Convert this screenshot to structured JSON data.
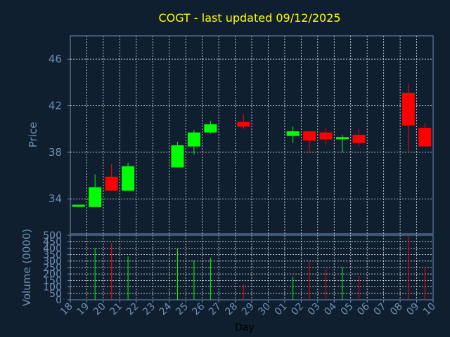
{
  "chart_data": [
    {
      "type": "candlestick",
      "title": "COGT - last updated 09/12/2025",
      "ylabel": "Price",
      "ylim": [
        31,
        48
      ],
      "yticks": [
        "34",
        "38",
        "42",
        "46"
      ],
      "grid": true,
      "colors": {
        "up": "#00ff00",
        "down": "#ff0000",
        "title": "#ffff00",
        "axis": "#6f8fb5",
        "background": "#0f1f2f"
      },
      "categories": [
        "18",
        "19",
        "20",
        "21",
        "22",
        "23",
        "24",
        "25",
        "26",
        "27",
        "28",
        "29",
        "30",
        "01",
        "02",
        "03",
        "04",
        "05",
        "06",
        "07",
        "08",
        "09",
        "10"
      ],
      "candles": [
        {
          "x": "18",
          "open": 33.5,
          "high": 33.5,
          "low": 33.5,
          "close": 33.5
        },
        {
          "x": "19",
          "open": 33.3,
          "high": 36.1,
          "low": 33.3,
          "close": 35.0
        },
        {
          "x": "20",
          "open": 35.9,
          "high": 37.0,
          "low": 34.7,
          "close": 34.7
        },
        {
          "x": "21",
          "open": 34.7,
          "high": 37.1,
          "low": 34.7,
          "close": 36.8
        },
        {
          "x": "24",
          "open": 36.7,
          "high": 38.9,
          "low": 36.7,
          "close": 38.6
        },
        {
          "x": "25",
          "open": 38.5,
          "high": 39.9,
          "low": 37.8,
          "close": 39.7
        },
        {
          "x": "26",
          "open": 39.7,
          "high": 40.7,
          "low": 39.6,
          "close": 40.4
        },
        {
          "x": "28",
          "open": 40.6,
          "high": 41.3,
          "low": 40.0,
          "close": 40.2
        },
        {
          "x": "01",
          "open": 39.4,
          "high": 40.2,
          "low": 38.8,
          "close": 39.8
        },
        {
          "x": "02",
          "open": 39.8,
          "high": 39.8,
          "low": 37.9,
          "close": 39.0
        },
        {
          "x": "03",
          "open": 39.7,
          "high": 40.1,
          "low": 38.6,
          "close": 39.1
        },
        {
          "x": "04",
          "open": 39.2,
          "high": 39.5,
          "low": 38.0,
          "close": 39.3
        },
        {
          "x": "05",
          "open": 39.5,
          "high": 40.0,
          "low": 38.5,
          "close": 38.8
        },
        {
          "x": "08",
          "open": 43.1,
          "high": 43.9,
          "low": 38.0,
          "close": 40.3
        },
        {
          "x": "09",
          "open": 40.1,
          "high": 40.5,
          "low": 38.5,
          "close": 38.5
        }
      ]
    },
    {
      "type": "bar",
      "xlabel": "Day",
      "ylabel": "Volume (0000)",
      "ylim": [
        0,
        500
      ],
      "yticks": [
        "0",
        "50",
        "100",
        "150",
        "200",
        "250",
        "300",
        "350",
        "400",
        "450",
        "500"
      ],
      "grid": true,
      "categories": [
        "18",
        "19",
        "20",
        "21",
        "22",
        "23",
        "24",
        "25",
        "26",
        "27",
        "28",
        "29",
        "30",
        "01",
        "02",
        "03",
        "04",
        "05",
        "06",
        "07",
        "08",
        "09",
        "10"
      ],
      "bars": [
        {
          "x": "18",
          "value": 0,
          "dir": "down"
        },
        {
          "x": "19",
          "value": 400,
          "dir": "up"
        },
        {
          "x": "20",
          "value": 440,
          "dir": "down"
        },
        {
          "x": "21",
          "value": 335,
          "dir": "up"
        },
        {
          "x": "24",
          "value": 395,
          "dir": "up"
        },
        {
          "x": "25",
          "value": 305,
          "dir": "up"
        },
        {
          "x": "26",
          "value": 325,
          "dir": "up"
        },
        {
          "x": "28",
          "value": 120,
          "dir": "down"
        },
        {
          "x": "01",
          "value": 180,
          "dir": "up"
        },
        {
          "x": "02",
          "value": 300,
          "dir": "down"
        },
        {
          "x": "03",
          "value": 240,
          "dir": "down"
        },
        {
          "x": "04",
          "value": 250,
          "dir": "up"
        },
        {
          "x": "05",
          "value": 185,
          "dir": "down"
        },
        {
          "x": "08",
          "value": 490,
          "dir": "down"
        },
        {
          "x": "09",
          "value": 250,
          "dir": "down"
        }
      ]
    }
  ]
}
